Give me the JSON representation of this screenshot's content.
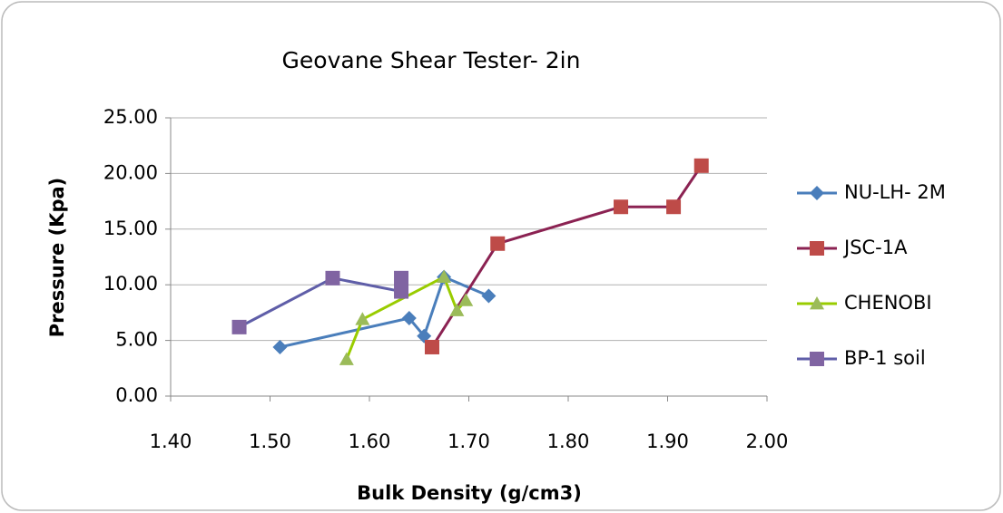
{
  "chart_data": {
    "type": "line",
    "title": "Geovane Shear Tester- 2in",
    "x_label": "Bulk Density (g/cm3)",
    "y_label": "Pressure (Kpa)",
    "xlim": [
      1.4,
      2.0
    ],
    "xticks": [
      {
        "value": 1.4,
        "label": "1.40"
      },
      {
        "value": 1.5,
        "label": "1.50"
      },
      {
        "value": 1.6,
        "label": "1.60"
      },
      {
        "value": 1.7,
        "label": "1.70"
      },
      {
        "value": 1.8,
        "label": "1.80"
      },
      {
        "value": 1.9,
        "label": "1.90"
      },
      {
        "value": 2.0,
        "label": "2.00"
      }
    ],
    "ylim": [
      0,
      25
    ],
    "yticks": [
      {
        "value": 0,
        "label": "0.00"
      },
      {
        "value": 5,
        "label": "5.00"
      },
      {
        "value": 10,
        "label": "10.00"
      },
      {
        "value": 15,
        "label": "15.00"
      },
      {
        "value": 20,
        "label": "20.00"
      },
      {
        "value": 25,
        "label": "25.00"
      }
    ],
    "grid": true,
    "legend": "right",
    "series": [
      {
        "name": "NU-LH- 2M",
        "color": "#4a7ebb",
        "marker": "diamond",
        "x": [
          1.51,
          1.64,
          1.655,
          1.675,
          1.72
        ],
        "values": [
          4.4,
          7.0,
          5.4,
          10.7,
          9.0
        ]
      },
      {
        "name": "JSC-1A",
        "color": "#be4b48",
        "line_color": "#8b2252",
        "marker": "square",
        "x": [
          1.663,
          1.729,
          1.853,
          1.906,
          1.934
        ],
        "values": [
          4.4,
          13.7,
          17.0,
          17.0,
          20.7
        ]
      },
      {
        "name": "CHENOBI",
        "color": "#9bbb59",
        "line_color": "#99cc00",
        "marker": "triangle",
        "x": [
          1.577,
          1.593,
          1.675,
          1.688,
          1.697
        ],
        "values": [
          3.3,
          6.9,
          10.7,
          7.7,
          8.6
        ]
      },
      {
        "name": "BP-1 soil",
        "color": "#8064a2",
        "line_color": "#5f5ea8",
        "marker": "square",
        "x": [
          1.469,
          1.563,
          1.632,
          1.632
        ],
        "values": [
          6.2,
          10.6,
          9.4,
          10.6
        ]
      }
    ]
  }
}
